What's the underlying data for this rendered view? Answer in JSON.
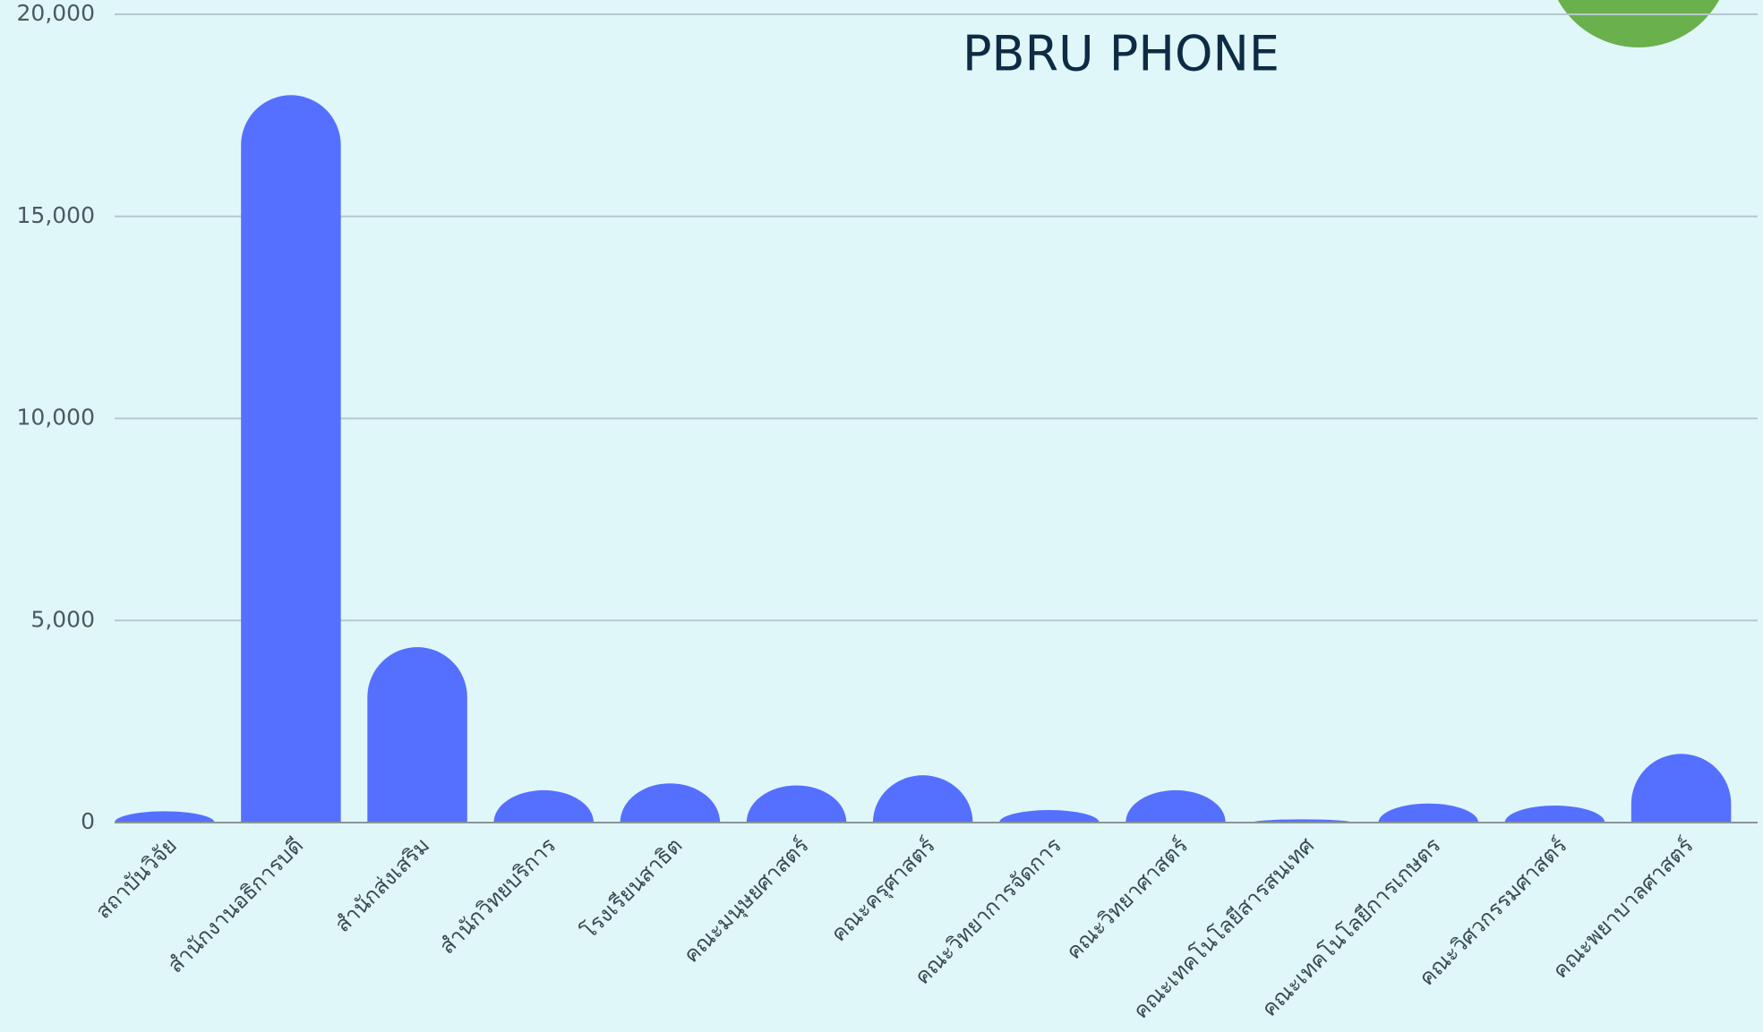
{
  "chart_data": {
    "type": "bar",
    "subtitle": "PBRU PHONE",
    "categories": [
      "สถาบันวิจัย",
      "สำนักงานอธิการบดี",
      "สำนักส่งเสริม",
      "สำนักวิทยบริการ",
      "โรงเรียนสาธิต",
      "คณะมนุษยศาสตร์",
      "คณะครุศาสตร์",
      "คณะวิทยาการจัดการ",
      "คณะวิทยาศาสตร์",
      "คณะเทคโนโลยีสารสนเทศ",
      "คณะเทคโนโลยีการเกษตร",
      "คณะวิศวกรรมศาสตร์",
      "คณะพยาบาลศาสตร์"
    ],
    "values": [
      280,
      18000,
      4340,
      800,
      970,
      920,
      1170,
      310,
      800,
      80,
      470,
      420,
      1700
    ],
    "color": "#5570ff",
    "ylim": [
      0,
      20000
    ],
    "yticks": [
      0,
      {
        "value": 5000,
        "label": "5,000"
      },
      {
        "value": 10000,
        "label": "10,000"
      },
      {
        "value": 15000,
        "label": "15,000"
      },
      {
        "value": 20000,
        "label": "20,000"
      }
    ],
    "grid": true
  }
}
